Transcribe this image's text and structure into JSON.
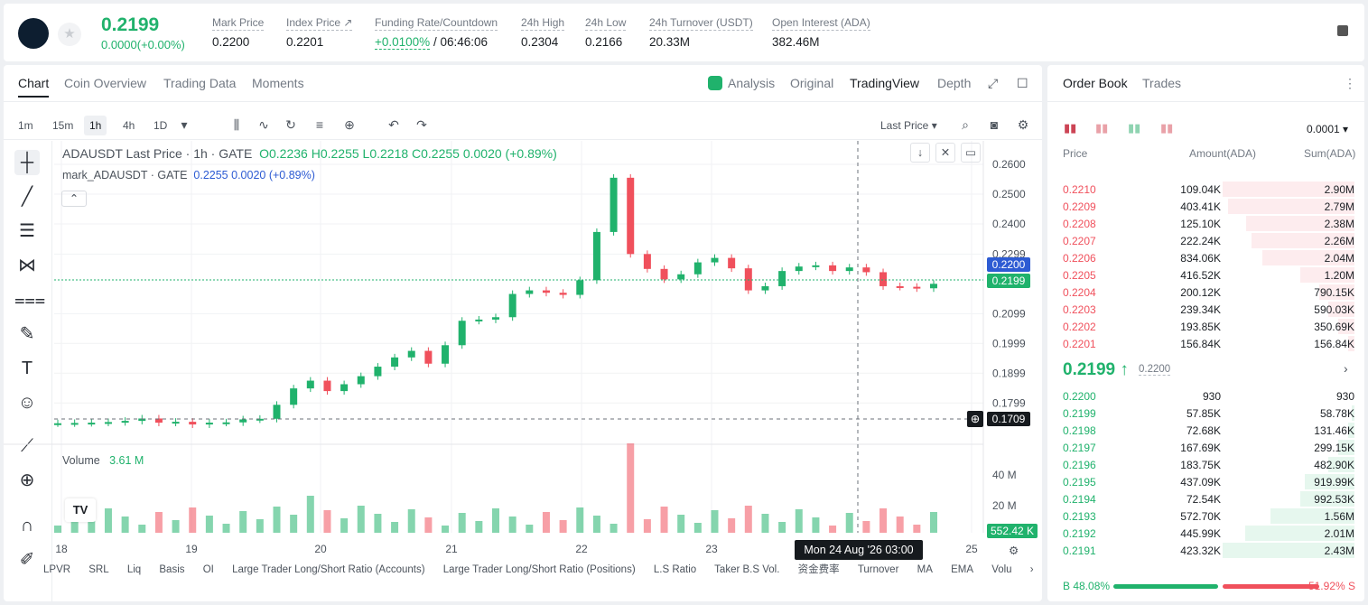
{
  "ticker": {
    "last_price": "0.2199",
    "change": "0.0000(+0.00%)",
    "stats": [
      {
        "label": "Mark Price",
        "value": "0.2200"
      },
      {
        "label": "Index Price ↗",
        "value": "0.2201"
      },
      {
        "label": "Funding Rate/Countdown",
        "value_green": "+0.0100%",
        "value": "/ 06:46:06"
      },
      {
        "label": "24h High",
        "value": "0.2304"
      },
      {
        "label": "24h Low",
        "value": "0.2166"
      },
      {
        "label": "24h Turnover (USDT)",
        "value": "20.33M"
      },
      {
        "label": "Open Interest (ADA)",
        "value": "382.46M"
      }
    ]
  },
  "chart_tabs": [
    "Chart",
    "Coin Overview",
    "Trading Data",
    "Moments"
  ],
  "view_tabs": [
    "Analysis",
    "Original",
    "TradingView",
    "Depth"
  ],
  "timeframes": [
    "1m",
    "15m",
    "1h",
    "4h",
    "1D"
  ],
  "price_type": "Last Price",
  "legend": {
    "symbol": "ADAUSDT Last Price · 1h · GATE",
    "ohlc": "O0.2236  H0.2255  L0.2218  C0.2255  0.0020  (+0.89%)",
    "mark_label": "mark_ADAUSDT · GATE",
    "mark_values": "0.2255  0.0020  (+0.89%)",
    "volume_label": "Volume",
    "volume_value": "3.61 M"
  },
  "price_tags": {
    "mark": "0.2200",
    "last": "0.2199",
    "cursor": "0.1709",
    "volume": "552.42 K"
  },
  "date_tag": "Mon 24 Aug '26   03:00",
  "indicators": [
    "LPVR",
    "SRL",
    "Liq",
    "Basis",
    "OI",
    "Large Trader Long/Short Ratio (Accounts)",
    "Large Trader Long/Short Ratio (Positions)",
    "L.S Ratio",
    "Taker B.S Vol.",
    "资金费率",
    "Turnover",
    "MA",
    "EMA",
    "Volu"
  ],
  "chart_data": {
    "type": "bar",
    "title": "ADAUSDT Last Price · 1h · GATE",
    "x_ticks": [
      "18",
      "19",
      "20",
      "21",
      "22",
      "23",
      "25"
    ],
    "price_ticks": [
      "0.2600",
      "0.2500",
      "0.2400",
      "0.2299",
      "0.2099",
      "0.1999",
      "0.1899",
      "0.1799"
    ],
    "volume_ticks": [
      "40 M",
      "20 M"
    ],
    "ylim": [
      0.1709,
      0.26
    ],
    "series": [
      {
        "name": "ADAUSDT Last Price",
        "values": [
          0.1731,
          0.1732,
          0.1733,
          0.1735,
          0.1739,
          0.1747,
          0.1733,
          0.1736,
          0.1727,
          0.1733,
          0.1734,
          0.1744,
          0.1746,
          0.1793,
          0.1848,
          0.1874,
          0.1839,
          0.1862,
          0.1889,
          0.1921,
          0.1952,
          0.1974,
          0.1931,
          0.1993,
          0.2075,
          0.2079,
          0.2087,
          0.2165,
          0.2177,
          0.2169,
          0.2162,
          0.2211,
          0.2373,
          0.2555,
          0.2299,
          0.2249,
          0.2214,
          0.2231,
          0.2271,
          0.2286,
          0.2251,
          0.2177,
          0.2191,
          0.2242,
          0.2257,
          0.2261,
          0.2242,
          0.2254,
          0.2238,
          0.2191,
          0.2189,
          0.2184,
          0.2199
        ]
      }
    ]
  },
  "order_book": {
    "tabs": [
      "Order Book",
      "Trades"
    ],
    "precision": "0.0001",
    "headers": [
      "Price",
      "Amount(ADA)",
      "Sum(ADA)"
    ],
    "asks": [
      {
        "price": "0.2210",
        "amount": "109.04K",
        "sum": "2.90M",
        "depth": 1.0
      },
      {
        "price": "0.2209",
        "amount": "403.41K",
        "sum": "2.79M",
        "depth": 0.96
      },
      {
        "price": "0.2208",
        "amount": "125.10K",
        "sum": "2.38M",
        "depth": 0.82
      },
      {
        "price": "0.2207",
        "amount": "222.24K",
        "sum": "2.26M",
        "depth": 0.78
      },
      {
        "price": "0.2206",
        "amount": "834.06K",
        "sum": "2.04M",
        "depth": 0.7
      },
      {
        "price": "0.2205",
        "amount": "416.52K",
        "sum": "1.20M",
        "depth": 0.41
      },
      {
        "price": "0.2204",
        "amount": "200.12K",
        "sum": "790.15K",
        "depth": 0.27
      },
      {
        "price": "0.2203",
        "amount": "239.34K",
        "sum": "590.03K",
        "depth": 0.2
      },
      {
        "price": "0.2202",
        "amount": "193.85K",
        "sum": "350.69K",
        "depth": 0.12
      },
      {
        "price": "0.2201",
        "amount": "156.84K",
        "sum": "156.84K",
        "depth": 0.05
      }
    ],
    "mid_price": "0.2199 ↑",
    "mid_mark": "0.2200",
    "bids": [
      {
        "price": "0.2200",
        "amount": "930",
        "sum": "930",
        "depth": 0.0
      },
      {
        "price": "0.2199",
        "amount": "57.85K",
        "sum": "58.78K",
        "depth": 0.02
      },
      {
        "price": "0.2198",
        "amount": "72.68K",
        "sum": "131.46K",
        "depth": 0.05
      },
      {
        "price": "0.2197",
        "amount": "167.69K",
        "sum": "299.15K",
        "depth": 0.12
      },
      {
        "price": "0.2196",
        "amount": "183.75K",
        "sum": "482.90K",
        "depth": 0.2
      },
      {
        "price": "0.2195",
        "amount": "437.09K",
        "sum": "919.99K",
        "depth": 0.38
      },
      {
        "price": "0.2194",
        "amount": "72.54K",
        "sum": "992.53K",
        "depth": 0.41
      },
      {
        "price": "0.2193",
        "amount": "572.70K",
        "sum": "1.56M",
        "depth": 0.64
      },
      {
        "price": "0.2192",
        "amount": "445.99K",
        "sum": "2.01M",
        "depth": 0.83
      },
      {
        "price": "0.2191",
        "amount": "423.32K",
        "sum": "2.43M",
        "depth": 1.0
      }
    ],
    "buy_ratio": "B 48.08%",
    "sell_ratio": "51.92% S"
  },
  "colors": {
    "up": "#20b26c",
    "down": "#f0505c",
    "accent": "#2d5bd3"
  }
}
